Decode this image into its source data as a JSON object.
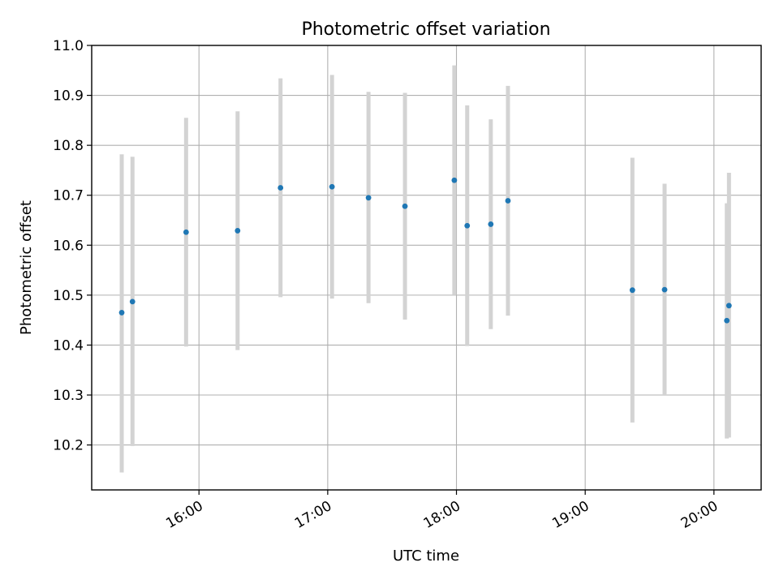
{
  "chart_data": {
    "type": "scatter",
    "title": "Photometric offset variation",
    "xlabel": "UTC time",
    "ylabel": "Photometric offset",
    "xlim": [
      "15:10",
      "20:22"
    ],
    "ylim": [
      10.11,
      11.0
    ],
    "grid": true,
    "xticks": [
      "16:00",
      "17:00",
      "18:00",
      "19:00",
      "20:00"
    ],
    "yticks": [
      10.2,
      10.3,
      10.4,
      10.5,
      10.6,
      10.7,
      10.8,
      10.9,
      11.0
    ],
    "ytick_labels": [
      "10.2",
      "10.3",
      "10.4",
      "10.5",
      "10.6",
      "10.7",
      "10.8",
      "10.9",
      "11.0"
    ],
    "marker_color": "#1f77b4",
    "errorbar_color": "#d3d3d3",
    "points": [
      {
        "x": "15:24",
        "y": 10.465,
        "err_low": 10.145,
        "err_high": 10.782
      },
      {
        "x": "15:29",
        "y": 10.487,
        "err_low": 10.198,
        "err_high": 10.777
      },
      {
        "x": "15:54",
        "y": 10.626,
        "err_low": 10.397,
        "err_high": 10.855
      },
      {
        "x": "16:18",
        "y": 10.629,
        "err_low": 10.39,
        "err_high": 10.868
      },
      {
        "x": "16:38",
        "y": 10.715,
        "err_low": 10.496,
        "err_high": 10.934
      },
      {
        "x": "17:02",
        "y": 10.717,
        "err_low": 10.493,
        "err_high": 10.941
      },
      {
        "x": "17:19",
        "y": 10.695,
        "err_low": 10.484,
        "err_high": 10.907
      },
      {
        "x": "17:36",
        "y": 10.678,
        "err_low": 10.451,
        "err_high": 10.905
      },
      {
        "x": "17:59",
        "y": 10.73,
        "err_low": 10.5,
        "err_high": 10.96
      },
      {
        "x": "18:05",
        "y": 10.639,
        "err_low": 10.398,
        "err_high": 10.88
      },
      {
        "x": "18:16",
        "y": 10.642,
        "err_low": 10.432,
        "err_high": 10.852
      },
      {
        "x": "18:24",
        "y": 10.689,
        "err_low": 10.459,
        "err_high": 10.919
      },
      {
        "x": "19:22",
        "y": 10.51,
        "err_low": 10.245,
        "err_high": 10.775
      },
      {
        "x": "19:37",
        "y": 10.511,
        "err_low": 10.3,
        "err_high": 10.723
      },
      {
        "x": "20:06",
        "y": 10.449,
        "err_low": 10.213,
        "err_high": 10.684
      },
      {
        "x": "20:07",
        "y": 10.479,
        "err_low": 10.215,
        "err_high": 10.745
      }
    ]
  }
}
